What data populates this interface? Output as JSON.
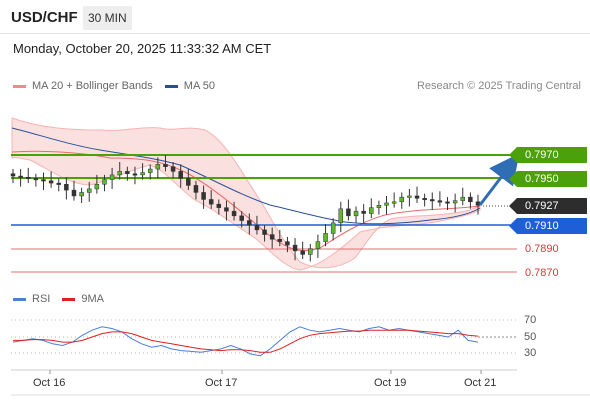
{
  "header": {
    "symbol": "USD/CHF",
    "interval": "30 MIN"
  },
  "datetime": "Monday, October 20, 2025 11:33:32 AM CET",
  "legend": {
    "ma20": {
      "label": "MA 20 + Bollinger Bands",
      "color": "#f08a8a"
    },
    "ma50": {
      "label": "MA 50",
      "color": "#2a4f9a"
    }
  },
  "credit": "Research © 2025 Trading Central",
  "levels": [
    {
      "value": "0.7970",
      "kind": "resistance",
      "color": "#4aa10b"
    },
    {
      "value": "0.7950",
      "kind": "resistance",
      "color": "#4aa10b"
    },
    {
      "value": "0.7927",
      "kind": "last-price",
      "color": "#2d2d2d"
    },
    {
      "value": "0.7910",
      "kind": "pivot",
      "color": "#1f5fd6"
    },
    {
      "value": "0.7890",
      "kind": "support",
      "color": "#d63a3a"
    },
    {
      "value": "0.7870",
      "kind": "support",
      "color": "#d63a3a"
    }
  ],
  "rsi_legend": {
    "rsi": {
      "label": "RSI",
      "color": "#4a7fd4"
    },
    "ma9": {
      "label": "9MA",
      "color": "#e02020"
    }
  },
  "rsi_ticks": [
    "70",
    "50",
    "30"
  ],
  "x_labels": [
    "Oct 16",
    "Oct 17",
    "Oct 19",
    "Oct 21"
  ],
  "chart_data": {
    "type": "candlestick",
    "series": [
      {
        "name": "MA 20 + Bollinger Bands"
      },
      {
        "name": "MA 50"
      },
      {
        "name": "RSI"
      },
      {
        "name": "9MA"
      }
    ],
    "price_levels": [
      0.797,
      0.795,
      0.7927,
      0.791,
      0.789,
      0.787
    ],
    "last_price": 0.7927,
    "close_approx": [
      0.7952,
      0.7951,
      0.795,
      0.7949,
      0.7948,
      0.7946,
      0.7945,
      0.794,
      0.7935,
      0.7938,
      0.7941,
      0.7945,
      0.7949,
      0.7953,
      0.7956,
      0.7954,
      0.7953,
      0.7955,
      0.7958,
      0.7962,
      0.796,
      0.7956,
      0.795,
      0.7944,
      0.7938,
      0.7932,
      0.7928,
      0.7925,
      0.7922,
      0.7918,
      0.7914,
      0.791,
      0.7906,
      0.7902,
      0.7898,
      0.7896,
      0.7893,
      0.7888,
      0.7885,
      0.789,
      0.7896,
      0.7903,
      0.7912,
      0.7924,
      0.7918,
      0.7922,
      0.792,
      0.7925,
      0.7927,
      0.7929,
      0.793,
      0.7934,
      0.7935,
      0.7933,
      0.7932,
      0.7931,
      0.793,
      0.7929,
      0.7931,
      0.7934,
      0.793,
      0.7927
    ],
    "rsi_approx": [
      44,
      46,
      48,
      46,
      42,
      40,
      44,
      52,
      58,
      62,
      60,
      56,
      48,
      42,
      38,
      40,
      36,
      34,
      33,
      32,
      34,
      36,
      40,
      36,
      30,
      28,
      36,
      46,
      56,
      62,
      58,
      56,
      58,
      60,
      58,
      56,
      60,
      62,
      58,
      60,
      58,
      56,
      54,
      52,
      50,
      58,
      46,
      44
    ],
    "rsi_ma_approx": [
      46,
      46,
      47,
      47,
      46,
      44,
      44,
      46,
      50,
      54,
      56,
      56,
      54,
      50,
      46,
      44,
      42,
      40,
      38,
      36,
      35,
      34,
      35,
      35,
      34,
      32,
      32,
      36,
      42,
      48,
      52,
      54,
      55,
      56,
      57,
      57,
      58,
      58,
      58,
      58,
      58,
      57,
      56,
      55,
      54,
      54,
      52,
      51
    ]
  }
}
